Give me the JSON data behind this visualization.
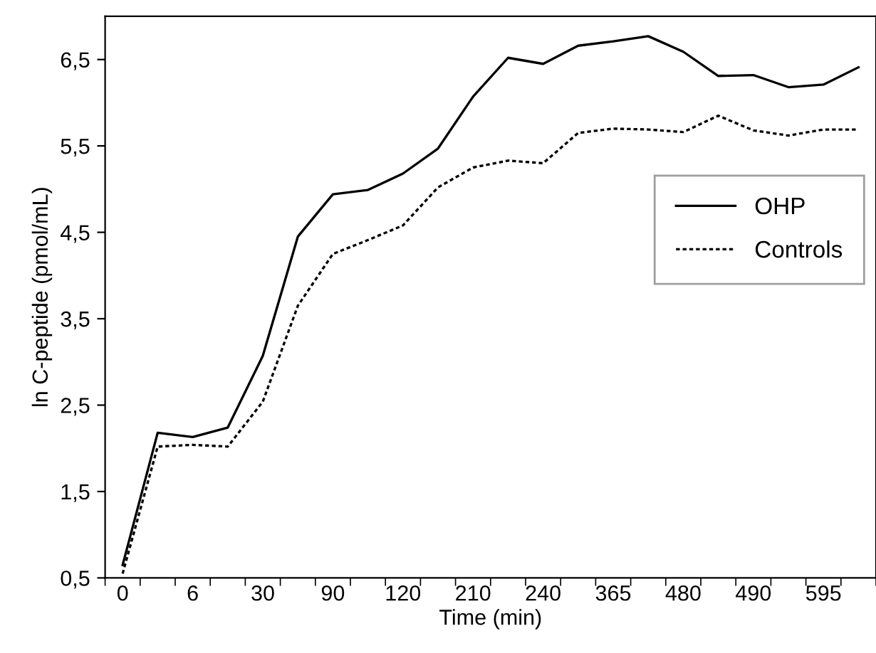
{
  "chart_data": {
    "type": "line",
    "xlabel": "Time (min)",
    "ylabel": "ln C-peptide (pmol/mL)",
    "categories": [
      "0",
      null,
      "6",
      null,
      "30",
      null,
      "90",
      null,
      "120",
      null,
      "210",
      null,
      "240",
      null,
      "365",
      null,
      "480",
      null,
      "490",
      null,
      "595",
      null
    ],
    "series": [
      {
        "name": "OHP",
        "color": "#000000",
        "line_style": "solid",
        "values": [
          0.65,
          2.18,
          2.13,
          2.24,
          3.07,
          4.45,
          4.94,
          4.99,
          5.18,
          5.47,
          6.07,
          6.52,
          6.45,
          6.66,
          6.71,
          6.77,
          6.59,
          6.31,
          6.32,
          6.18,
          6.21,
          6.41
        ]
      },
      {
        "name": "Controls",
        "color": "#000000",
        "line_style": "dotted",
        "values": [
          0.55,
          2.02,
          2.04,
          2.02,
          2.54,
          3.65,
          4.25,
          4.41,
          4.58,
          5.02,
          5.25,
          5.33,
          5.3,
          5.65,
          5.7,
          5.69,
          5.66,
          5.85,
          5.68,
          5.62,
          5.69,
          5.69
        ]
      }
    ],
    "ylim": [
      0.5,
      7
    ],
    "yticks": [
      {
        "value": 0.5,
        "label": "0,5"
      },
      {
        "value": 1.5,
        "label": "1,5"
      },
      {
        "value": 2.5,
        "label": "2,5"
      },
      {
        "value": 3.5,
        "label": "3,5"
      },
      {
        "value": 4.5,
        "label": "4,5"
      },
      {
        "value": 5.5,
        "label": "5,5"
      },
      {
        "value": 6.5,
        "label": "6,5"
      }
    ],
    "grid": false,
    "legend": "right",
    "marker": "none"
  }
}
